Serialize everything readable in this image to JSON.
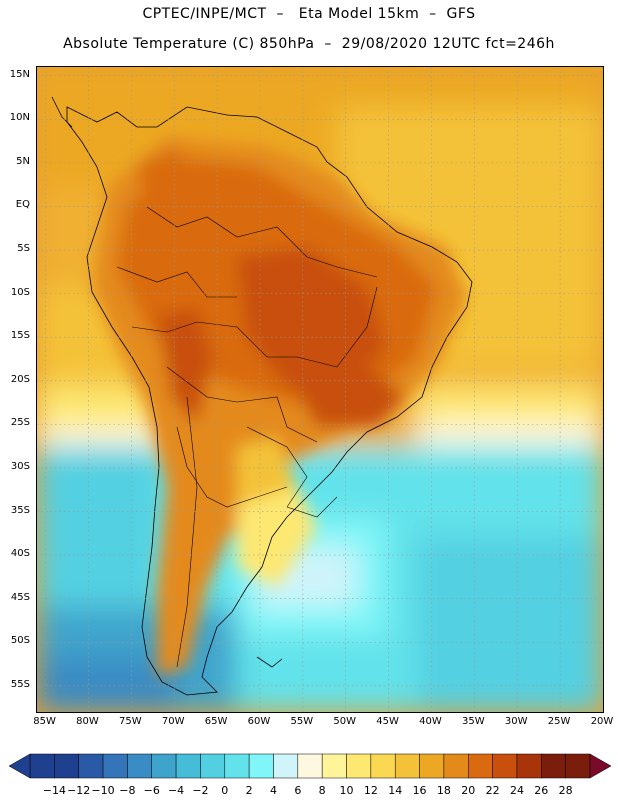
{
  "header": {
    "line1": "CPTEC/INPE/MCT  –   Eta Model 15km  –  GFS",
    "line2": "Absolute Temperature (C) 850hPa  –  29/08/2020 12UTC fct=246h"
  },
  "axes": {
    "lat_labels": [
      "15N",
      "10N",
      "5N",
      "EQ",
      "5S",
      "10S",
      "15S",
      "20S",
      "25S",
      "30S",
      "35S",
      "40S",
      "45S",
      "50S",
      "55S"
    ],
    "lon_labels": [
      "85W",
      "80W",
      "75W",
      "70W",
      "65W",
      "60W",
      "55W",
      "50W",
      "45W",
      "40W",
      "35W",
      "30W",
      "25W",
      "20W"
    ],
    "lat_range": [
      -58,
      16
    ],
    "lon_range": [
      -86,
      -20
    ]
  },
  "colorbar": {
    "labels": [
      "-14",
      "-12",
      "-10",
      "-8",
      "-6",
      "-4",
      "-2",
      "0",
      "2",
      "4",
      "6",
      "8",
      "10",
      "12",
      "14",
      "16",
      "18",
      "20",
      "22",
      "24",
      "26",
      "28"
    ],
    "colors": [
      "#1f3f8f",
      "#1f3f8f",
      "#2a5aa6",
      "#3474b8",
      "#3a8cc4",
      "#3fa4cc",
      "#45bcd8",
      "#52d0e2",
      "#62e2ea",
      "#80f6f8",
      "#cff4fa",
      "#fff8e0",
      "#fff49a",
      "#fde872",
      "#fad852",
      "#f4c238",
      "#eca824",
      "#e48a1a",
      "#d96a10",
      "#c8500c",
      "#a8340a",
      "#7a1d0c",
      "#7a1d0c"
    ],
    "low_end_color": "#1f3f8f",
    "high_end_color": "#7a0a2a"
  }
}
